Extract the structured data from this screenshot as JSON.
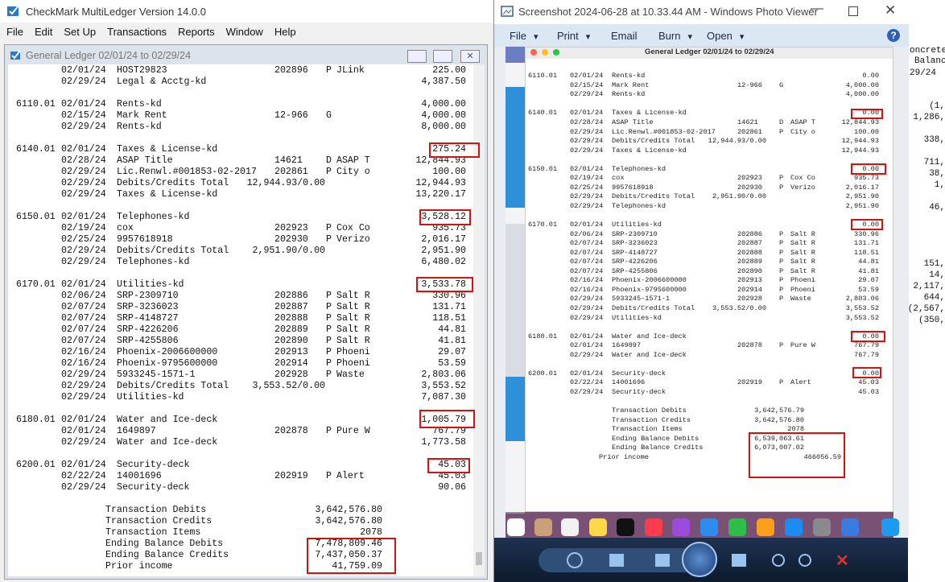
{
  "main_window": {
    "title": "CheckMark MultiLedger Version 14.0.0",
    "menu": [
      "File",
      "Edit",
      "Set Up",
      "Transactions",
      "Reports",
      "Window",
      "Help"
    ],
    "ledger_window": {
      "title": "General Ledger 02/01/24 to 02/29/24",
      "groups": [
        {
          "rows": [
            {
              "date": "02/01/24",
              "description": "HOST29823",
              "reference": "202896",
              "type": "P",
              "name": "JLink",
              "amount": "225.00"
            },
            {
              "date": "02/29/24",
              "description": "Legal & Acctg-kd",
              "amount": "4,387.50"
            }
          ]
        },
        {
          "rows": [
            {
              "account": "6110.01",
              "date": "02/01/24",
              "description": "Rents-kd",
              "amount": "4,000.00"
            },
            {
              "date": "02/15/24",
              "description": "Mark Rent",
              "reference": "12-966",
              "type": "G",
              "amount": "4,000.00"
            },
            {
              "date": "02/29/24",
              "description": "Rents-kd",
              "amount": "8,000.00"
            }
          ]
        },
        {
          "rows": [
            {
              "account": "6140.01",
              "date": "02/01/24",
              "description": "Taxes & License-kd",
              "amount": "275.24"
            },
            {
              "date": "02/28/24",
              "description": "ASAP Title",
              "reference": "14621",
              "type": "D",
              "name": "ASAP T",
              "amount": "12,844.93"
            },
            {
              "date": "02/29/24",
              "description": "Lic.Renwl.#001853-02-2017",
              "reference": "202861",
              "type": "P",
              "name": "City o",
              "amount": "100.00"
            },
            {
              "date": "02/29/24",
              "description": "Debits/Credits Total",
              "total": "12,944.93/0.00",
              "amount": "12,944.93"
            },
            {
              "date": "02/29/24",
              "description": "Taxes & License-kd",
              "amount": "13,220.17"
            }
          ]
        },
        {
          "rows": [
            {
              "account": "6150.01",
              "date": "02/01/24",
              "description": "Telephones-kd",
              "amount": "3,528.12"
            },
            {
              "date": "02/19/24",
              "description": "cox",
              "reference": "202923",
              "type": "P",
              "name": "Cox Co",
              "amount": "935.73"
            },
            {
              "date": "02/25/24",
              "description": "9957618918",
              "reference": "202930",
              "type": "P",
              "name": "Verizo",
              "amount": "2,016.17"
            },
            {
              "date": "02/29/24",
              "description": "Debits/Credits Total",
              "total": "2,951.90/0.00",
              "amount": "2,951.90"
            },
            {
              "date": "02/29/24",
              "description": "Telephones-kd",
              "amount": "6,480.02"
            }
          ]
        },
        {
          "rows": [
            {
              "account": "6170.01",
              "date": "02/01/24",
              "description": "Utilities-kd",
              "amount": "3,533.78"
            },
            {
              "date": "02/06/24",
              "description": "SRP-2309710",
              "reference": "202886",
              "type": "P",
              "name": "Salt R",
              "amount": "330.96"
            },
            {
              "date": "02/07/24",
              "description": "SRP-3236023",
              "reference": "202887",
              "type": "P",
              "name": "Salt R",
              "amount": "131.71"
            },
            {
              "date": "02/07/24",
              "description": "SRP-4148727",
              "reference": "202888",
              "type": "P",
              "name": "Salt R",
              "amount": "118.51"
            },
            {
              "date": "02/07/24",
              "description": "SRP-4226206",
              "reference": "202889",
              "type": "P",
              "name": "Salt R",
              "amount": "44.81"
            },
            {
              "date": "02/07/24",
              "description": "SRP-4255806",
              "reference": "202890",
              "type": "P",
              "name": "Salt R",
              "amount": "41.81"
            },
            {
              "date": "02/16/24",
              "description": "Phoenix-2006600000",
              "reference": "202913",
              "type": "P",
              "name": "Phoeni",
              "amount": "29.07"
            },
            {
              "date": "02/16/24",
              "description": "Phoenix-9795600000",
              "reference": "202914",
              "type": "P",
              "name": "Phoeni",
              "amount": "53.59"
            },
            {
              "date": "02/29/24",
              "description": "5933245-1571-1",
              "reference": "202928",
              "type": "P",
              "name": "Waste",
              "amount": "2,803.06"
            },
            {
              "date": "02/29/24",
              "description": "Debits/Credits Total",
              "total": "3,553.52/0.00",
              "amount": "3,553.52"
            },
            {
              "date": "02/29/24",
              "description": "Utilities-kd",
              "amount": "7,087.30"
            }
          ]
        },
        {
          "rows": [
            {
              "account": "6180.01",
              "date": "02/01/24",
              "description": "Water and Ice-deck",
              "amount": "1,005.79"
            },
            {
              "date": "02/01/24",
              "description": "1649897",
              "reference": "202878",
              "type": "P",
              "name": "Pure W",
              "amount": "767.79"
            },
            {
              "date": "02/29/24",
              "description": "Water and Ice-deck",
              "amount": "1,773.58"
            }
          ]
        },
        {
          "rows": [
            {
              "account": "6200.01",
              "date": "02/01/24",
              "description": "Security-deck",
              "amount": "45.03"
            },
            {
              "date": "02/22/24",
              "description": "14001696",
              "reference": "202919",
              "type": "P",
              "name": "Alert",
              "amount": "45.03"
            },
            {
              "date": "02/29/24",
              "description": "Security-deck",
              "amount": "90.06"
            }
          ]
        }
      ],
      "summary": [
        {
          "label": "Transaction Debits",
          "value": "3,642,576.80"
        },
        {
          "label": "Transaction Credits",
          "value": "3,642,576.80"
        },
        {
          "label": "Transaction Items",
          "value": "2078"
        },
        {
          "label": "Ending Balance Debits",
          "value": "7,478,809.46"
        },
        {
          "label": "Ending Balance Credits",
          "value": "7,437,050.37"
        },
        {
          "label": "Prior income",
          "value": "41,759.09"
        }
      ]
    }
  },
  "photo_viewer": {
    "title": "Screenshot 2024-06-28 at 10.33.44 AM - Windows Photo Viewer",
    "toolbar": [
      "File",
      "Print",
      "Email",
      "Burn",
      "Open"
    ],
    "screenshot": {
      "title": "General Ledger 02/01/24 to 02/29/24",
      "groups": [
        {
          "rows": [
            {
              "account": "6110.01",
              "date": "02/01/24",
              "description": "Rents-kd",
              "amount": "0.00"
            },
            {
              "date": "02/15/24",
              "description": "Mark Rent",
              "reference": "12-966",
              "type": "G",
              "amount": "4,000.00"
            },
            {
              "date": "02/29/24",
              "description": "Rents-kd",
              "amount": "4,000.00"
            }
          ]
        },
        {
          "rows": [
            {
              "account": "6140.01",
              "date": "02/01/24",
              "description": "Taxes & License-kd",
              "amount": "0.00"
            },
            {
              "date": "02/28/24",
              "description": "ASAP Title",
              "reference": "14621",
              "type": "D",
              "name": "ASAP T",
              "amount": "12,844.93"
            },
            {
              "date": "02/29/24",
              "description": "Lic.Renwl.#001853-02-2017",
              "reference": "202861",
              "type": "P",
              "name": "City o",
              "amount": "100.00"
            },
            {
              "date": "02/29/24",
              "description": "Debits/Credits Total",
              "total": "12,944.93/0.00",
              "amount": "12,944.93"
            },
            {
              "date": "02/29/24",
              "description": "Taxes & License-kd",
              "amount": "12,944.93"
            }
          ]
        },
        {
          "rows": [
            {
              "account": "6150.01",
              "date": "02/01/24",
              "description": "Telephones-kd",
              "amount": "0.00"
            },
            {
              "date": "02/19/24",
              "description": "cox",
              "reference": "202923",
              "type": "P",
              "name": "Cox Co",
              "amount": "935.73"
            },
            {
              "date": "02/25/24",
              "description": "9957618918",
              "reference": "202930",
              "type": "P",
              "name": "Verizo",
              "amount": "2,016.17"
            },
            {
              "date": "02/29/24",
              "description": "Debits/Credits Total",
              "total": "2,951.90/0.00",
              "amount": "2,951.90"
            },
            {
              "date": "02/29/24",
              "description": "Telephones-kd",
              "amount": "2,951.90"
            }
          ]
        },
        {
          "rows": [
            {
              "account": "6170.01",
              "date": "02/01/24",
              "description": "Utilities-kd",
              "amount": "0.00"
            },
            {
              "date": "02/06/24",
              "description": "SRP-2309710",
              "reference": "202886",
              "type": "P",
              "name": "Salt R",
              "amount": "330.96"
            },
            {
              "date": "02/07/24",
              "description": "SRP-3236023",
              "reference": "202887",
              "type": "P",
              "name": "Salt R",
              "amount": "131.71"
            },
            {
              "date": "02/07/24",
              "description": "SRP-4148727",
              "reference": "202888",
              "type": "P",
              "name": "Salt R",
              "amount": "118.51"
            },
            {
              "date": "02/07/24",
              "description": "SRP-4226206",
              "reference": "202889",
              "type": "P",
              "name": "Salt R",
              "amount": "44.81"
            },
            {
              "date": "02/07/24",
              "description": "SRP-4255806",
              "reference": "202890",
              "type": "P",
              "name": "Salt R",
              "amount": "41.81"
            },
            {
              "date": "02/16/24",
              "description": "Phoenix-2006600000",
              "reference": "202913",
              "type": "P",
              "name": "Phoeni",
              "amount": "29.07"
            },
            {
              "date": "02/16/24",
              "description": "Phoenix-9795600000",
              "reference": "202914",
              "type": "P",
              "name": "Phoeni",
              "amount": "53.59"
            },
            {
              "date": "02/29/24",
              "description": "5933245-1571-1",
              "reference": "202928",
              "type": "P",
              "name": "Waste",
              "amount": "2,803.06"
            },
            {
              "date": "02/29/24",
              "description": "Debits/Credits Total",
              "total": "3,553.52/0.00",
              "amount": "3,553.52"
            },
            {
              "date": "02/29/24",
              "description": "Utilities-kd",
              "amount": "3,553.52"
            }
          ]
        },
        {
          "rows": [
            {
              "account": "6180.01",
              "date": "02/01/24",
              "description": "Water and Ice-deck",
              "amount": "0.00"
            },
            {
              "date": "02/01/24",
              "description": "1649897",
              "reference": "202878",
              "type": "P",
              "name": "Pure W",
              "amount": "767.79"
            },
            {
              "date": "02/29/24",
              "description": "Water and Ice-deck",
              "amount": "767.79"
            }
          ]
        },
        {
          "rows": [
            {
              "account": "6200.01",
              "date": "02/01/24",
              "description": "Security-deck",
              "amount": "0.00"
            },
            {
              "date": "02/22/24",
              "description": "14001696",
              "reference": "202919",
              "type": "P",
              "name": "Alert",
              "amount": "45.03"
            },
            {
              "date": "02/29/24",
              "description": "Security-deck",
              "amount": "45.03"
            }
          ]
        }
      ],
      "summary": [
        {
          "label": "Transaction Debits",
          "value": "3,642,576.79"
        },
        {
          "label": "Transaction Credits",
          "value": "3,642,576.80"
        },
        {
          "label": "Transaction Items",
          "value": "2078"
        },
        {
          "label": "Ending Balance Debits",
          "value": "6,539,063.61"
        },
        {
          "label": "Ending Balance Credits",
          "value": "6,073,007.02"
        },
        {
          "label": "Prior income",
          "value": "466056.59"
        }
      ]
    }
  },
  "background_window": {
    "fragments": [
      "oncrete",
      "Balanc",
      "29/24",
      "(1,",
      "1,286,",
      "338,",
      "711,",
      "38,",
      "1,",
      "46,",
      "151,",
      "14,",
      "2,117,",
      "644,",
      "(2,567,",
      "(350,"
    ]
  }
}
